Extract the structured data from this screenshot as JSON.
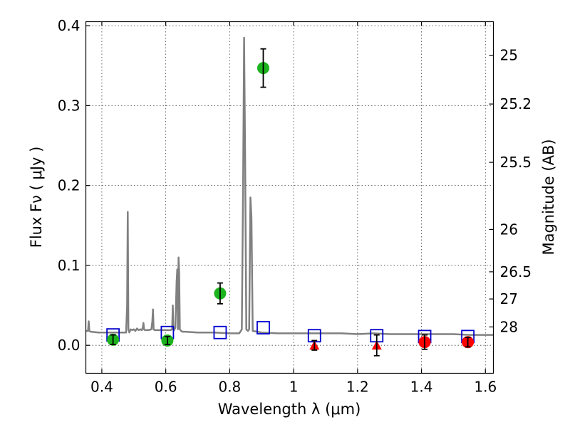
{
  "chart_data": {
    "type": "scatter",
    "title": "",
    "xlabel": "Wavelength  λ (μm)",
    "ylabel": "Flux  Fν  ( μJy )",
    "ylabel_right": "Magnitude (AB)",
    "xlim": [
      0.35,
      1.625
    ],
    "ylim": [
      -0.035,
      0.405
    ],
    "grid": true,
    "x_ticks": [
      0.4,
      0.6,
      0.8,
      1.0,
      1.2,
      1.4,
      1.6
    ],
    "x_tick_labels": [
      "0.4",
      "0.6",
      "0.8",
      "1",
      "1.2",
      "1.4",
      "1.6"
    ],
    "y_ticks": [
      0.0,
      0.1,
      0.2,
      0.3,
      0.4
    ],
    "y_tick_labels": [
      "0.0",
      "0.1",
      "0.2",
      "0.3",
      "0.4"
    ],
    "right_ticks": [
      {
        "label": "25",
        "flux": 0.363
      },
      {
        "label": "25.2",
        "flux": 0.302
      },
      {
        "label": "25.5",
        "flux": 0.229
      },
      {
        "label": "26",
        "flux": 0.145
      },
      {
        "label": "26.5",
        "flux": 0.092
      },
      {
        "label": "27",
        "flux": 0.058
      },
      {
        "label": "28",
        "flux": 0.023
      }
    ],
    "colors": {
      "model": "#808080",
      "model_photometry": "#0000cc",
      "detections": "#1db31d",
      "weak": "#ff0000",
      "errorbar": "#000000"
    },
    "series": [
      {
        "kind": "line",
        "x": [
          0.35,
          0.357,
          0.359,
          0.361,
          0.365,
          0.39,
          0.42,
          0.45,
          0.47,
          0.476,
          0.479,
          0.481,
          0.483,
          0.486,
          0.49,
          0.495,
          0.5,
          0.505,
          0.51,
          0.515,
          0.52,
          0.525,
          0.528,
          0.53,
          0.532,
          0.535,
          0.545,
          0.555,
          0.558,
          0.56,
          0.562,
          0.565,
          0.58,
          0.6,
          0.615,
          0.62,
          0.622,
          0.624,
          0.626,
          0.63,
          0.634,
          0.636,
          0.638,
          0.64,
          0.642,
          0.644,
          0.646,
          0.648,
          0.652,
          0.66,
          0.7,
          0.75,
          0.8,
          0.83,
          0.838,
          0.842,
          0.845,
          0.848,
          0.852,
          0.857,
          0.861,
          0.865,
          0.868,
          0.872,
          0.9,
          0.95,
          1.0,
          1.05,
          1.1,
          1.15,
          1.2,
          1.25,
          1.3,
          1.35,
          1.4,
          1.45,
          1.5,
          1.55,
          1.6,
          1.625
        ],
        "y": [
          0.018,
          0.018,
          0.03,
          0.018,
          0.017,
          0.016,
          0.016,
          0.016,
          0.016,
          0.016,
          0.05,
          0.167,
          0.02,
          0.016,
          0.02,
          0.019,
          0.02,
          0.018,
          0.021,
          0.019,
          0.02,
          0.019,
          0.022,
          0.028,
          0.02,
          0.019,
          0.019,
          0.02,
          0.03,
          0.045,
          0.02,
          0.019,
          0.019,
          0.019,
          0.019,
          0.02,
          0.05,
          0.02,
          0.019,
          0.022,
          0.08,
          0.095,
          0.02,
          0.11,
          0.09,
          0.02,
          0.019,
          0.018,
          0.017,
          0.017,
          0.016,
          0.016,
          0.015,
          0.015,
          0.02,
          0.2,
          0.385,
          0.25,
          0.02,
          0.018,
          0.02,
          0.185,
          0.16,
          0.018,
          0.016,
          0.015,
          0.015,
          0.015,
          0.015,
          0.015,
          0.014,
          0.015,
          0.014,
          0.014,
          0.014,
          0.014,
          0.014,
          0.013,
          0.013,
          0.013
        ]
      },
      {
        "kind": "square",
        "x": [
          0.435,
          0.605,
          0.77,
          0.905,
          1.065,
          1.26,
          1.41,
          1.545
        ],
        "y": [
          0.013,
          0.016,
          0.016,
          0.022,
          0.012,
          0.012,
          0.011,
          0.011
        ]
      },
      {
        "kind": "circle",
        "x": [
          0.435,
          0.605,
          0.77,
          0.905
        ],
        "y": [
          0.007,
          0.006,
          0.065,
          0.347
        ],
        "yerr": [
          0.006,
          0.005,
          0.013,
          0.024
        ]
      },
      {
        "kind": "triangle",
        "x": [
          1.065,
          1.26
        ],
        "y": [
          0.0,
          0.0
        ],
        "yerr": [
          0.006,
          0.013
        ]
      },
      {
        "kind": "circle-weak",
        "x": [
          1.41,
          1.545
        ],
        "y": [
          0.004,
          0.004
        ],
        "yerr": [
          0.009,
          0.006
        ]
      }
    ]
  }
}
